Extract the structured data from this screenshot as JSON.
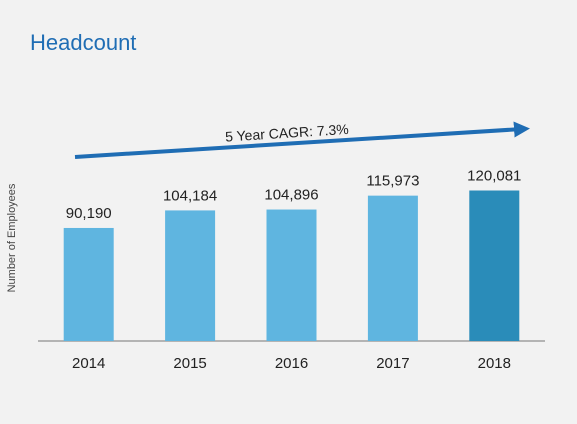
{
  "chart_data": {
    "type": "bar",
    "title": "Headcount",
    "ylabel": "Number of Employees",
    "annotation": "5 Year CAGR: 7.3%",
    "categories": [
      "2014",
      "2015",
      "2016",
      "2017",
      "2018"
    ],
    "values": [
      90190,
      104184,
      104896,
      115973,
      120081
    ],
    "value_labels": [
      "90,190",
      "104,184",
      "104,896",
      "115,973",
      "120,081"
    ],
    "colors": [
      "#5fb5e0",
      "#5fb5e0",
      "#5fb5e0",
      "#5fb5e0",
      "#2a8cb9"
    ],
    "ylim": [
      0,
      150000
    ],
    "grid": false
  }
}
